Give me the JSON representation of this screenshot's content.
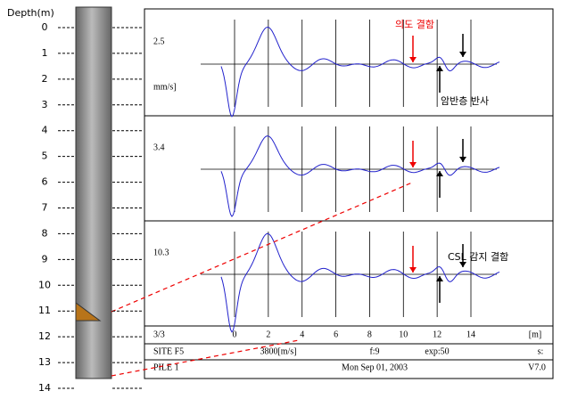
{
  "depth_axis": {
    "label": "Depth(m)",
    "ticks": [
      0,
      1,
      2,
      3,
      4,
      5,
      6,
      7,
      8,
      9,
      10,
      11,
      12,
      13,
      14
    ]
  },
  "traces": [
    {
      "scale": "2.5",
      "unit": "mm/s]"
    },
    {
      "scale": "3.4"
    },
    {
      "scale": "10.3"
    }
  ],
  "annotations": {
    "intended_defect": "의도 결함",
    "rock_reflection": "암반층 반사",
    "csl_defect": "CSL 감지 결함"
  },
  "footer": {
    "page": "3/3",
    "x_ticks": [
      0,
      2,
      4,
      6,
      8,
      10,
      12,
      14
    ],
    "x_unit": "[m]",
    "site": "SITE F5",
    "velocity": "3800[m/s]",
    "filter": "f:9",
    "exp": "exp:50",
    "s": "s:",
    "pile": "PILE 1",
    "date": "Mon Sep 01, 2003",
    "version": "V7.0"
  }
}
